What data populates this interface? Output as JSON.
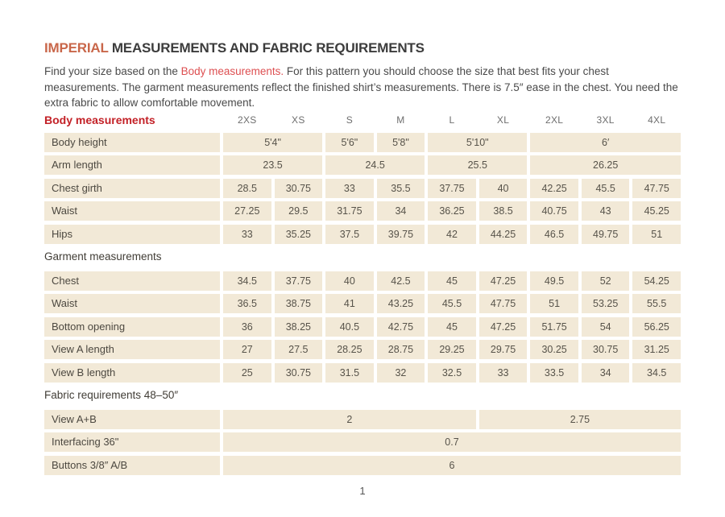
{
  "colors": {
    "accent_orange": "#c9674a",
    "accent_red": "#c32127",
    "link_red": "#dd4f51",
    "cell_beige": "#f2e9d7",
    "body_text": "#4a4a4a"
  },
  "header": {
    "title_highlight": "IMPERIAL",
    "title_rest": " MEASUREMENTS AND FABRIC REQUIREMENTS"
  },
  "intro": {
    "before": "Find your size based on the ",
    "link": "Body measurements.",
    "after": " For this pattern you should choose the size that best fits your chest measurements. The garment measurements reflect the finished shirt’s measurements. There is 7.5″ ease in the chest. You need the extra fabric to allow comfortable movement."
  },
  "table": {
    "header_label": "Body measurements",
    "sizes": [
      "2XS",
      "XS",
      "S",
      "M",
      "L",
      "XL",
      "2XL",
      "3XL",
      "4XL"
    ],
    "rows": [
      {
        "label": "Body height",
        "cells": [
          [
            "5'4\"",
            2
          ],
          [
            "5'6\"",
            1
          ],
          [
            "5'8\"",
            1
          ],
          [
            "5'10\"",
            2
          ],
          [
            "6′",
            3
          ]
        ]
      },
      {
        "label": "Arm length",
        "cells": [
          [
            "23.5",
            2
          ],
          [
            "24.5",
            2
          ],
          [
            "25.5",
            2
          ],
          [
            "26.25",
            3
          ]
        ]
      },
      {
        "label": "Chest girth",
        "cells": [
          [
            "28.5",
            1
          ],
          [
            "30.75",
            1
          ],
          [
            "33",
            1
          ],
          [
            "35.5",
            1
          ],
          [
            "37.75",
            1
          ],
          [
            "40",
            1
          ],
          [
            "42.25",
            1
          ],
          [
            "45.5",
            1
          ],
          [
            "47.75",
            1
          ]
        ]
      },
      {
        "label": "Waist",
        "cells": [
          [
            "27.25",
            1
          ],
          [
            "29.5",
            1
          ],
          [
            "31.75",
            1
          ],
          [
            "34",
            1
          ],
          [
            "36.25",
            1
          ],
          [
            "38.5",
            1
          ],
          [
            "40.75",
            1
          ],
          [
            "43",
            1
          ],
          [
            "45.25",
            1
          ]
        ]
      },
      {
        "label": "Hips",
        "cells": [
          [
            "33",
            1
          ],
          [
            "35.25",
            1
          ],
          [
            "37.5",
            1
          ],
          [
            "39.75",
            1
          ],
          [
            "42",
            1
          ],
          [
            "44.25",
            1
          ],
          [
            "46.5",
            1
          ],
          [
            "49.75",
            1
          ],
          [
            "51",
            1
          ]
        ]
      },
      {
        "section": "Garment measurements"
      },
      {
        "label": "Chest",
        "cells": [
          [
            "34.5",
            1
          ],
          [
            "37.75",
            1
          ],
          [
            "40",
            1
          ],
          [
            "42.5",
            1
          ],
          [
            "45",
            1
          ],
          [
            "47.25",
            1
          ],
          [
            "49.5",
            1
          ],
          [
            "52",
            1
          ],
          [
            "54.25",
            1
          ]
        ]
      },
      {
        "label": "Waist",
        "cells": [
          [
            "36.5",
            1
          ],
          [
            "38.75",
            1
          ],
          [
            "41",
            1
          ],
          [
            "43.25",
            1
          ],
          [
            "45.5",
            1
          ],
          [
            "47.75",
            1
          ],
          [
            "51",
            1
          ],
          [
            "53.25",
            1
          ],
          [
            "55.5",
            1
          ]
        ]
      },
      {
        "label": "Bottom opening",
        "cells": [
          [
            "36",
            1
          ],
          [
            "38.25",
            1
          ],
          [
            "40.5",
            1
          ],
          [
            "42.75",
            1
          ],
          [
            "45",
            1
          ],
          [
            "47.25",
            1
          ],
          [
            "51.75",
            1
          ],
          [
            "54",
            1
          ],
          [
            "56.25",
            1
          ]
        ]
      },
      {
        "label": "View A length",
        "cells": [
          [
            "27",
            1
          ],
          [
            "27.5",
            1
          ],
          [
            "28.25",
            1
          ],
          [
            "28.75",
            1
          ],
          [
            "29.25",
            1
          ],
          [
            "29.75",
            1
          ],
          [
            "30.25",
            1
          ],
          [
            "30.75",
            1
          ],
          [
            "31.25",
            1
          ]
        ]
      },
      {
        "label": "View B length",
        "cells": [
          [
            "25",
            1
          ],
          [
            "30.75",
            1
          ],
          [
            "31.5",
            1
          ],
          [
            "32",
            1
          ],
          [
            "32.5",
            1
          ],
          [
            "33",
            1
          ],
          [
            "33.5",
            1
          ],
          [
            "34",
            1
          ],
          [
            "34.5",
            1
          ]
        ]
      },
      {
        "section": "Fabric requirements 48–50″"
      },
      {
        "label": "View A+B",
        "cells": [
          [
            "2",
            5
          ],
          [
            "2.75",
            4
          ]
        ]
      },
      {
        "label": "Interfacing 36\"",
        "cells": [
          [
            "0.7",
            9
          ]
        ]
      },
      {
        "label": "Buttons 3/8″ A/B",
        "cells": [
          [
            "6",
            9
          ]
        ]
      }
    ]
  },
  "footer": {
    "page_number": "1"
  }
}
